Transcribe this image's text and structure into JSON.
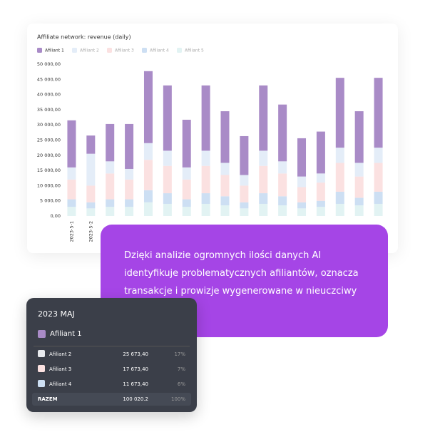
{
  "chart_data": {
    "type": "stacked-bar",
    "title": "Affiliate network: revenue (daily)",
    "categories": [
      "2023-5-1",
      "2023-5-2",
      null,
      null,
      null,
      null,
      null,
      null,
      null,
      null,
      null,
      null,
      null,
      null,
      null,
      null,
      null
    ],
    "series": [
      {
        "name": "Afiliant 5",
        "color": "#e2f3f3",
        "values": [
          3000,
          2500,
          3000,
          3000,
          4500,
          4000,
          3000,
          4000,
          3500,
          2500,
          4000,
          3500,
          2500,
          3000,
          4000,
          3500,
          4000
        ]
      },
      {
        "name": "Afiliant 4",
        "color": "#cddff3",
        "values": [
          2500,
          2000,
          2500,
          2500,
          4000,
          3500,
          2500,
          3500,
          3000,
          2000,
          3500,
          3000,
          2000,
          2000,
          4000,
          2500,
          4000
        ]
      },
      {
        "name": "Afiliant 3",
        "color": "#fbe1e1",
        "values": [
          6500,
          5500,
          8500,
          6500,
          10000,
          9000,
          6500,
          9000,
          7000,
          5500,
          9000,
          7500,
          5000,
          6000,
          9500,
          7000,
          9500
        ]
      },
      {
        "name": "Afiliant 2",
        "color": "#e4edf8",
        "values": [
          4000,
          10500,
          4000,
          3500,
          5500,
          5000,
          4000,
          5000,
          4000,
          3500,
          5000,
          4000,
          3500,
          3000,
          5000,
          4500,
          5000
        ]
      },
      {
        "name": "Afiliant 1",
        "color": "#a98bc7",
        "values": [
          15500,
          6000,
          12300,
          14800,
          23700,
          21500,
          15700,
          21500,
          17000,
          12800,
          21500,
          18700,
          12600,
          13800,
          23000,
          17000,
          23000
        ]
      }
    ],
    "legend_order": [
      4,
      3,
      2,
      1,
      0
    ],
    "ylim": [
      0,
      50000
    ],
    "yticks": [
      {
        "value": 0,
        "label": "0,00"
      },
      {
        "value": 5000,
        "label": "5 000,00"
      },
      {
        "value": 10000,
        "label": "10 000,00"
      },
      {
        "value": 15000,
        "label": "15 000,00"
      },
      {
        "value": 20000,
        "label": "20 000,00"
      },
      {
        "value": 25000,
        "label": "25 000,00"
      },
      {
        "value": 30000,
        "label": "30 000,00"
      },
      {
        "value": 35000,
        "label": "35 000,00"
      },
      {
        "value": 40000,
        "label": "40 000,00"
      },
      {
        "value": 45000,
        "label": "45 000,00"
      },
      {
        "value": 50000,
        "label": "50 000,00"
      }
    ]
  },
  "callout": {
    "text": "Dzięki analizie ogromnych ilości danych AI identyfikuje problematycznych afiliantów, oznacza transakcje i prowizje wygenerowane w nieuczciwy sposób"
  },
  "card": {
    "title": "2023 MAJ",
    "selected": "Afiliant 1",
    "rows": [
      [
        "Afiliant 2",
        "25 673,40",
        "17%"
      ],
      [
        "Afiliant 3",
        "17 673,40",
        "7%"
      ],
      [
        "Afiliant 4",
        "11 673,40",
        "6%"
      ]
    ],
    "total": [
      "RAZEM",
      "100 020.2",
      "100%"
    ]
  }
}
